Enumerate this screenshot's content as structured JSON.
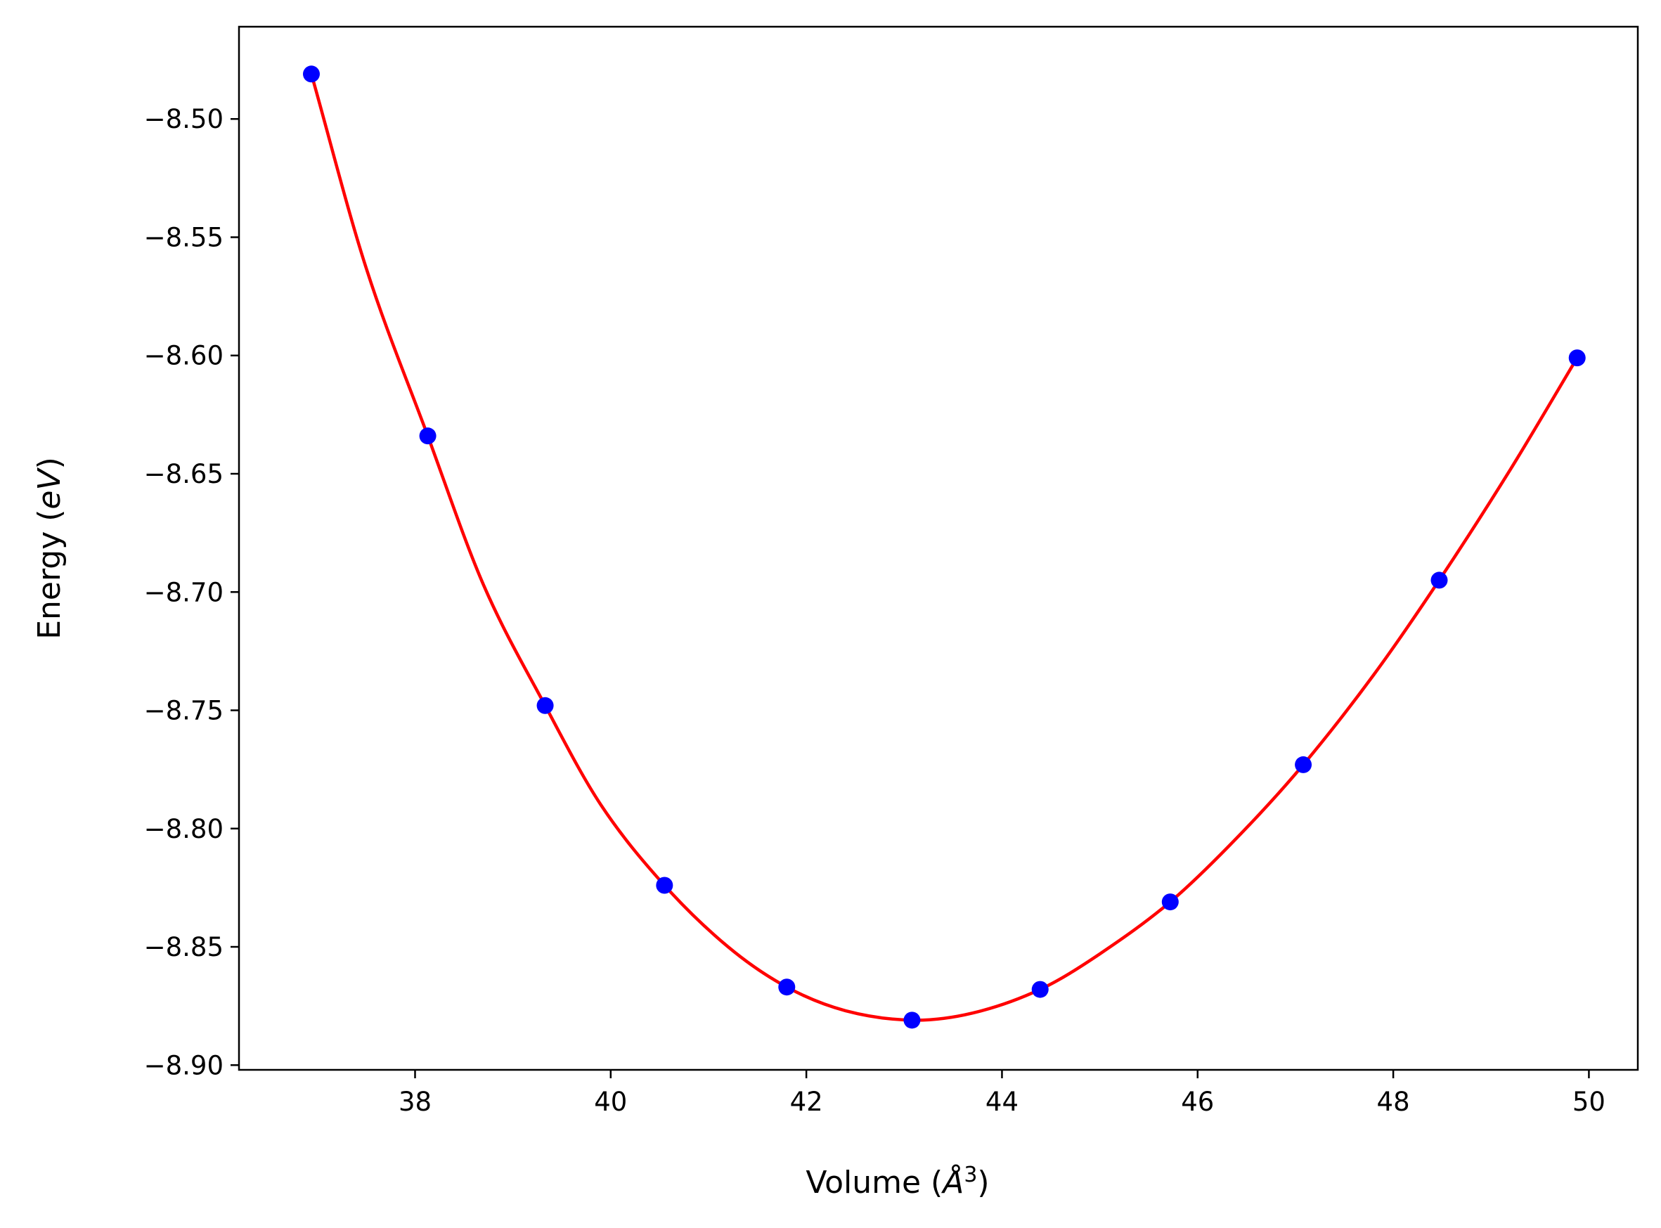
{
  "chart_data": {
    "type": "line",
    "title": "",
    "xlabel": "Volume",
    "xlabel_unit": "Å",
    "xlabel_unit_exponent": "3",
    "ylabel": "Energy",
    "ylabel_unit": "eV",
    "xlim": [
      36.2,
      50.5
    ],
    "ylim": [
      -8.902,
      -8.461
    ],
    "xticks": [
      38,
      40,
      42,
      44,
      46,
      48,
      50
    ],
    "xtick_labels": [
      "38",
      "40",
      "42",
      "44",
      "46",
      "48",
      "50"
    ],
    "yticks": [
      -8.5,
      -8.55,
      -8.6,
      -8.65,
      -8.7,
      -8.75,
      -8.8,
      -8.85,
      -8.9
    ],
    "ytick_labels": [
      "−8.50",
      "−8.55",
      "−8.60",
      "−8.65",
      "−8.70",
      "−8.75",
      "−8.80",
      "−8.85",
      "−8.90"
    ],
    "grid": false,
    "series": [
      {
        "kind": "markers",
        "color": "#0000ff",
        "x": [
          36.94,
          38.13,
          39.33,
          40.55,
          41.8,
          43.08,
          44.39,
          45.72,
          47.08,
          48.47,
          49.88
        ],
        "y": [
          -8.481,
          -8.634,
          -8.748,
          -8.824,
          -8.867,
          -8.881,
          -8.868,
          -8.831,
          -8.773,
          -8.695,
          -8.601
        ]
      },
      {
        "kind": "fit-curve",
        "color": "#ff0000",
        "x": [
          36.94,
          37.5,
          38.13,
          38.7,
          39.33,
          39.9,
          40.55,
          41.2,
          41.8,
          42.4,
          43.08,
          43.7,
          44.39,
          45.0,
          45.72,
          46.4,
          47.08,
          47.8,
          48.47,
          49.2,
          49.88
        ],
        "y": [
          -8.481,
          -8.563,
          -8.634,
          -8.697,
          -8.748,
          -8.79,
          -8.824,
          -8.85,
          -8.867,
          -8.877,
          -8.881,
          -8.878,
          -8.868,
          -8.853,
          -8.831,
          -8.804,
          -8.773,
          -8.735,
          -8.695,
          -8.648,
          -8.601
        ]
      }
    ]
  }
}
